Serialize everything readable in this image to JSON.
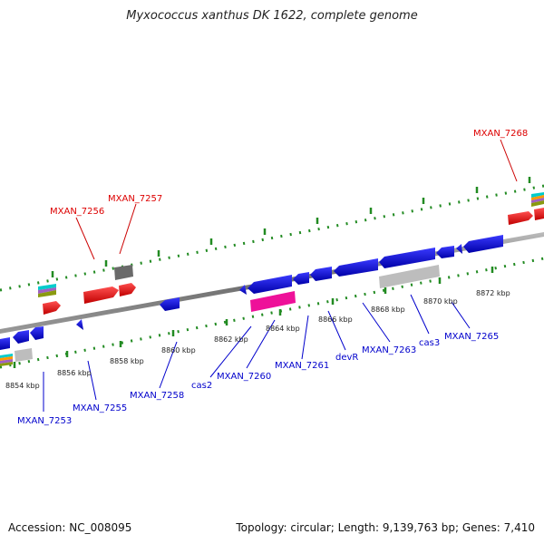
{
  "title": "Myxococcus xanthus DK 1622, complete genome",
  "footer": {
    "accession": "Accession: NC_008095",
    "summary": "Topology: circular; Length: 9,139,763 bp; Genes: 7,410"
  },
  "colors": {
    "forward": "#e00000",
    "reverse": "#0000cc",
    "backbone": "#888888",
    "ticks": "#228b22"
  },
  "ticks": [
    "8854 kbp",
    "8856 kbp",
    "8858 kbp",
    "8860 kbp",
    "8862 kbp",
    "8864 kbp",
    "8866 kbp",
    "8868 kbp",
    "8870 kbp",
    "8872 kbp"
  ],
  "gene_labels": {
    "forward": [
      "MXAN_7256",
      "MXAN_7257",
      "MXAN_7268"
    ],
    "reverse": [
      "MXAN_7253",
      "MXAN_7255",
      "MXAN_7258",
      "cas2",
      "MXAN_7260",
      "MXAN_7261",
      "devR",
      "MXAN_7263",
      "cas3",
      "MXAN_7265"
    ]
  }
}
